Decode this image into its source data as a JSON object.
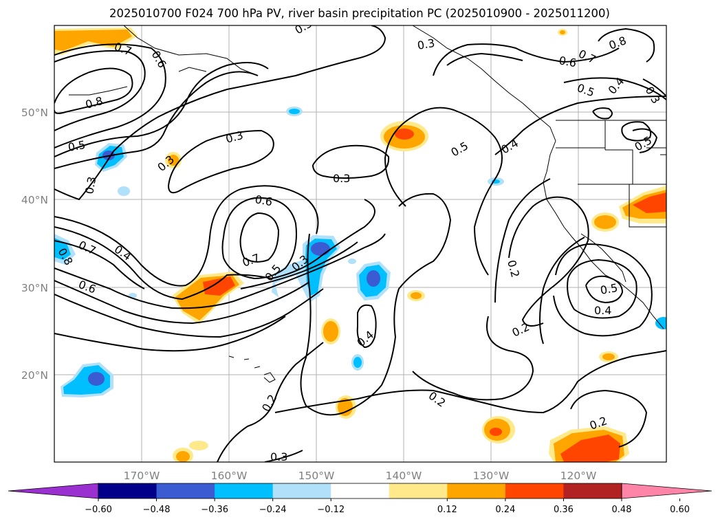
{
  "title": "2025010700 F024 700 hPa PV, river basin precipitation PC (2025010900 - 2025011200)",
  "map": {
    "lon_labels": [
      "170°W",
      "160°W",
      "150°W",
      "140°W",
      "130°W",
      "120°W"
    ],
    "lat_labels": [
      "50°N",
      "40°N",
      "30°N",
      "20°N"
    ],
    "gridlines": true,
    "contour_labels": [
      "0.7",
      "0.6",
      "0.5",
      "0.8",
      "0.3",
      "0.3",
      "0.3",
      "0.3",
      "0.6",
      "0.7",
      "0.7",
      "0.4",
      "0.8",
      "0.6",
      "0.5",
      "0.3",
      "0.4",
      "0.2",
      "0.2",
      "0.2",
      "0.3",
      "0.2",
      "0.4",
      "0.5",
      "0.5",
      "0.4",
      "0.8",
      "0.7",
      "0.6",
      "0.5",
      "0.4",
      "0.3",
      "0.5",
      "0.3",
      "0.2",
      "0.3"
    ]
  },
  "colorbar": {
    "ticks": [
      "−0.60",
      "−0.48",
      "−0.36",
      "−0.24",
      "−0.12",
      "0.12",
      "0.24",
      "0.36",
      "0.48",
      "0.60"
    ],
    "colors": [
      "#9b30d0",
      "#00008b",
      "#3a5bd1",
      "#00bfff",
      "#b0e0fa",
      "#ffffff",
      "#ffe98a",
      "#ffa500",
      "#ff4500",
      "#b22222",
      "#ff85a8"
    ],
    "extend": "both"
  }
}
